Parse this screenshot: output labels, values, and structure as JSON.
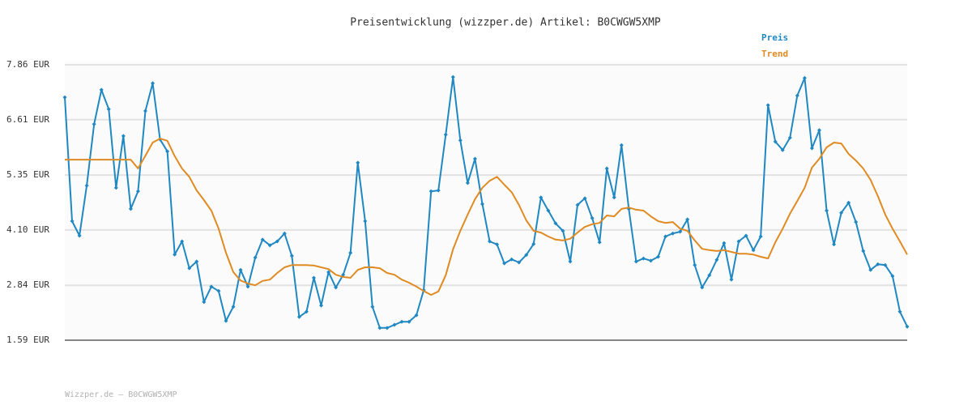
{
  "chart_data": {
    "type": "line",
    "title": "Preisentwicklung (wizzper.de) Artikel: B0CWGW5XMP",
    "footer": "Wizzper.de – B0CWGW5XMP",
    "legend": "top-right",
    "grid": true,
    "ylim": [
      1.59,
      7.86
    ],
    "yticks": [
      {
        "value": 1.59,
        "label": "1.59 EUR"
      },
      {
        "value": 2.84,
        "label": "2.84 EUR"
      },
      {
        "value": 4.1,
        "label": "4.10 EUR"
      },
      {
        "value": 5.35,
        "label": "5.35 EUR"
      },
      {
        "value": 6.61,
        "label": "6.61 EUR"
      },
      {
        "value": 7.86,
        "label": "7.86 EUR"
      }
    ],
    "series": [
      {
        "name": "Preis",
        "color": "#1f88c2",
        "markers": true,
        "values": [
          7.12,
          4.3,
          3.97,
          5.11,
          6.51,
          7.29,
          6.85,
          5.06,
          6.24,
          4.58,
          4.98,
          6.81,
          7.44,
          6.16,
          5.89,
          3.54,
          3.84,
          3.23,
          3.38,
          2.46,
          2.81,
          2.71,
          2.03,
          2.35,
          3.19,
          2.81,
          3.47,
          3.88,
          3.75,
          3.84,
          4.02,
          3.51,
          2.12,
          2.24,
          3.01,
          2.38,
          3.14,
          2.79,
          3.08,
          3.58,
          5.63,
          4.3,
          2.35,
          1.87,
          1.87,
          1.94,
          2.01,
          2.01,
          2.16,
          2.73,
          4.98,
          5.0,
          6.27,
          7.58,
          6.14,
          5.17,
          5.72,
          4.69,
          3.84,
          3.77,
          3.34,
          3.43,
          3.36,
          3.53,
          3.78,
          4.84,
          4.54,
          4.25,
          4.08,
          3.38,
          4.67,
          4.82,
          4.37,
          3.82,
          5.5,
          4.84,
          6.03,
          4.58,
          3.38,
          3.45,
          3.4,
          3.49,
          3.95,
          4.02,
          4.06,
          4.34,
          3.3,
          2.79,
          3.07,
          3.42,
          3.8,
          2.97,
          3.84,
          3.97,
          3.64,
          3.95,
          6.94,
          6.11,
          5.92,
          6.2,
          7.16,
          7.56,
          5.96,
          6.37,
          4.54,
          3.77,
          4.49,
          4.72,
          4.28,
          3.62,
          3.19,
          3.32,
          3.3,
          3.05,
          2.24,
          1.9
        ]
      },
      {
        "name": "Trend",
        "color": "#e08a22",
        "markers": false,
        "values": [
          5.7,
          5.7,
          5.7,
          5.7,
          5.7,
          5.7,
          5.7,
          5.7,
          5.7,
          5.7,
          5.5,
          5.79,
          6.09,
          6.18,
          6.13,
          5.78,
          5.5,
          5.31,
          5.0,
          4.78,
          4.54,
          4.13,
          3.58,
          3.14,
          2.95,
          2.88,
          2.84,
          2.94,
          2.97,
          3.12,
          3.25,
          3.3,
          3.3,
          3.3,
          3.29,
          3.25,
          3.21,
          3.08,
          3.03,
          3.01,
          3.19,
          3.25,
          3.25,
          3.23,
          3.12,
          3.08,
          2.97,
          2.9,
          2.81,
          2.71,
          2.62,
          2.7,
          3.07,
          3.66,
          4.08,
          4.45,
          4.8,
          5.06,
          5.22,
          5.31,
          5.13,
          4.96,
          4.67,
          4.32,
          4.08,
          4.04,
          3.95,
          3.88,
          3.86,
          3.9,
          4.04,
          4.17,
          4.23,
          4.26,
          4.43,
          4.41,
          4.58,
          4.61,
          4.56,
          4.54,
          4.41,
          4.3,
          4.26,
          4.28,
          4.13,
          4.08,
          3.86,
          3.67,
          3.64,
          3.62,
          3.64,
          3.6,
          3.56,
          3.56,
          3.54,
          3.49,
          3.45,
          3.82,
          4.13,
          4.47,
          4.76,
          5.06,
          5.52,
          5.72,
          5.98,
          6.09,
          6.07,
          5.83,
          5.68,
          5.5,
          5.24,
          4.87,
          4.45,
          4.13,
          3.84,
          3.54
        ]
      }
    ]
  }
}
